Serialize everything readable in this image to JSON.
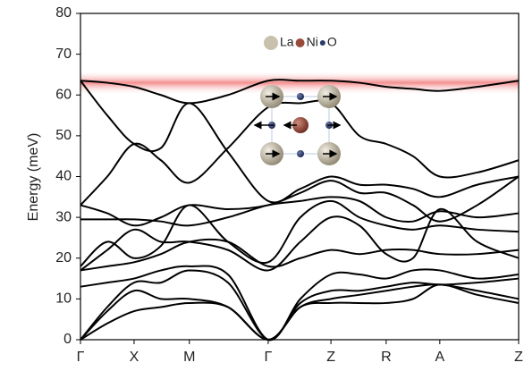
{
  "chart_data": {
    "type": "line",
    "ylabel": "Energy (meV)",
    "x": [
      0,
      0.5,
      1,
      1.5,
      2.03,
      2.75,
      3.5,
      4.1,
      4.67,
      5.2,
      5.7,
      6.2,
      6.7,
      7.4,
      8.17
    ],
    "xlim": [
      0,
      8.17
    ],
    "xticks": [
      {
        "value": 0,
        "label": "Γ"
      },
      {
        "value": 1,
        "label": "X"
      },
      {
        "value": 2.03,
        "label": "M"
      },
      {
        "value": 3.5,
        "label": "Γ"
      },
      {
        "value": 4.67,
        "label": "Z"
      },
      {
        "value": 5.7,
        "label": "R"
      },
      {
        "value": 6.7,
        "label": "A"
      },
      {
        "value": 8.17,
        "label": "Z"
      }
    ],
    "ylim": [
      0,
      80
    ],
    "yticks": [
      0,
      10,
      20,
      30,
      40,
      50,
      60,
      70,
      80
    ],
    "grid": false,
    "highlight": {
      "ylim": [
        60,
        66
      ],
      "color": "#f06a6a"
    },
    "legend": [
      {
        "label": "La",
        "color": "#c9c1ae"
      },
      {
        "label": "Ni",
        "color": "#9a4a3a"
      },
      {
        "label": "O",
        "color": "#2a3a6a"
      }
    ],
    "series": [
      {
        "color": "#000000",
        "values": [
          63.5,
          63,
          62,
          60,
          58,
          60,
          63.5,
          63.5,
          63.5,
          63,
          62,
          61.5,
          61,
          62,
          63.5
        ]
      },
      {
        "color": "#000000",
        "values": [
          63.5,
          55,
          48,
          47,
          58,
          46,
          34,
          37,
          40,
          38,
          38,
          37,
          35,
          38,
          40
        ]
      },
      {
        "color": "#000000",
        "values": [
          33,
          40,
          48,
          44,
          38.5,
          47,
          57,
          58,
          58,
          50,
          48,
          45,
          40,
          41,
          44
        ]
      },
      {
        "color": "#000000",
        "values": [
          33,
          31,
          28,
          30,
          33,
          32,
          33,
          36,
          39,
          36,
          36,
          33,
          29,
          33,
          40
        ]
      },
      {
        "color": "#000000",
        "values": [
          29.5,
          29.5,
          29.5,
          29,
          28,
          30,
          33,
          34,
          35,
          34,
          30,
          29,
          31.5,
          30,
          31
        ]
      },
      {
        "color": "#000000",
        "values": [
          18,
          24,
          20,
          23,
          33,
          24,
          19,
          30,
          34,
          30,
          28,
          27,
          28,
          27,
          26.5
        ]
      },
      {
        "color": "#000000",
        "values": [
          17,
          22,
          27,
          24,
          24,
          22,
          17,
          24,
          30,
          28,
          21,
          20,
          32,
          24,
          20
        ]
      },
      {
        "color": "#000000",
        "values": [
          17,
          18,
          19,
          21,
          24,
          24,
          18,
          20,
          22,
          21,
          22,
          22,
          21,
          21,
          22
        ]
      },
      {
        "color": "#000000",
        "values": [
          13,
          14,
          15,
          17,
          18,
          16,
          0,
          10,
          16,
          16,
          15,
          17,
          17,
          15,
          16
        ]
      },
      {
        "color": "#000000",
        "values": [
          0,
          8,
          14,
          14,
          17,
          14,
          0,
          9,
          12,
          12,
          13,
          14,
          13.5,
          14,
          15
        ]
      },
      {
        "color": "#000000",
        "values": [
          0,
          7,
          12,
          10,
          10,
          8,
          0,
          8,
          10,
          11,
          12,
          13,
          13.5,
          12,
          10
        ]
      },
      {
        "color": "#000000",
        "values": [
          0,
          4,
          7,
          8,
          9,
          8,
          0,
          8,
          9,
          9,
          9,
          10,
          13.5,
          11,
          9
        ]
      }
    ]
  }
}
